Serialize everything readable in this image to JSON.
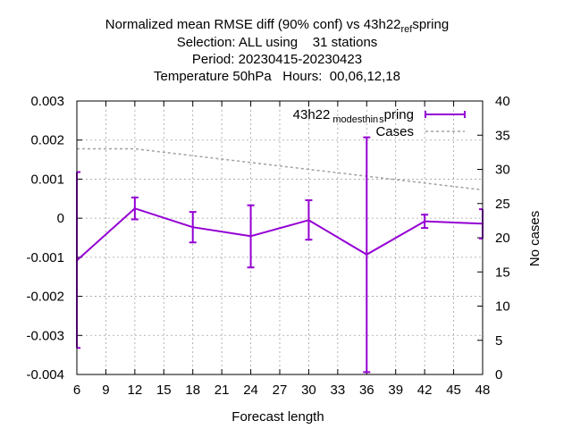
{
  "chart_data": {
    "type": "line",
    "title_lines": [
      "Normalized mean RMSE diff (90% conf) vs 43h22_ref_spring",
      "Selection: ALL using    31 stations",
      "Period: 20230415-20230423",
      "Temperature 50hPa   Hours:  00,06,12,18"
    ],
    "xlabel": "Forecast length",
    "ylabel": "",
    "y2label": "No cases",
    "x_ticks": [
      6,
      9,
      12,
      15,
      18,
      21,
      24,
      27,
      30,
      33,
      36,
      39,
      42,
      45,
      48
    ],
    "y_ticks": [
      -0.004,
      -0.003,
      -0.002,
      -0.001,
      0,
      0.001,
      0.002,
      0.003
    ],
    "y_tick_labels": [
      "-0.004",
      "-0.003",
      "-0.002",
      "-0.001",
      "0",
      "0.001",
      "0.002",
      "0.003"
    ],
    "y2_ticks": [
      0,
      5,
      10,
      15,
      20,
      25,
      30,
      35,
      40
    ],
    "xlim": [
      6,
      48
    ],
    "ylim": [
      -0.004,
      0.003
    ],
    "y2lim": [
      0,
      40
    ],
    "grid": true,
    "legend_position": "top-right",
    "series": [
      {
        "name": "43h22_modesthin_spring",
        "kind": "line-errorbars",
        "axis": "y",
        "color": "#9400d3",
        "x": [
          6,
          12,
          18,
          24,
          30,
          36,
          42,
          48
        ],
        "y": [
          -0.00108,
          0.00025,
          -0.00023,
          -0.00046,
          -5e-05,
          -0.00093,
          -8e-05,
          -0.00014
        ],
        "y_low": [
          -0.00332,
          -3e-05,
          -0.00062,
          -0.00126,
          -0.00055,
          -0.00394,
          -0.00025,
          -0.00052
        ],
        "y_high": [
          0.00118,
          0.00053,
          0.00016,
          0.00033,
          0.00046,
          0.00207,
          9e-05,
          0.00023
        ]
      },
      {
        "name": "Cases",
        "kind": "dashed-line",
        "axis": "y2",
        "color": "#a0a0a0",
        "x": [
          6,
          12,
          18,
          24,
          30,
          36,
          42,
          48
        ],
        "y": [
          33,
          33,
          32,
          31,
          30,
          29,
          28,
          27
        ]
      }
    ],
    "legend": {
      "entries": [
        {
          "series": 0,
          "parts": [
            "43h22",
            "modesthin",
            "s",
            "pring"
          ]
        },
        {
          "series": 1,
          "parts": [
            "Cases"
          ]
        }
      ]
    },
    "title_subscript_parts": [
      "Normalized mean RMSE diff (90% conf) vs 43h22",
      "ref",
      "s",
      "pring"
    ]
  }
}
